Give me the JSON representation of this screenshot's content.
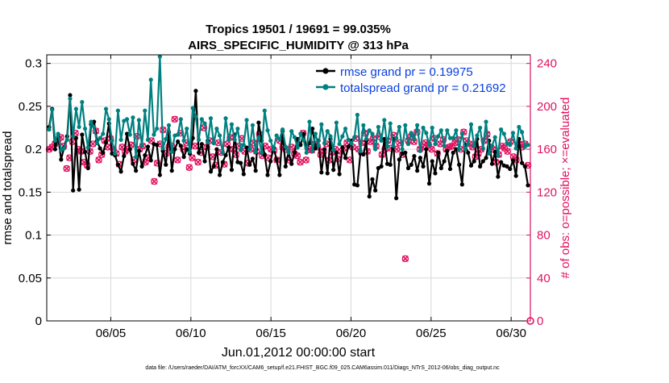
{
  "chart_data": {
    "type": "line",
    "title_line1": "Tropics 19501 / 19691 = 99.035%",
    "title_line2": "AIRS_SPECIFIC_HUMIDITY @ 313 hPa",
    "xlabel": "Jun.01,2012 00:00:00 start",
    "ylabel_left": "rmse and totalspread",
    "ylabel_right": "# of obs: o=possible; ×=evaluated",
    "footer": "data file: /Users/raeder/DAI/ATM_forcXX/CAM6_setup/f.e21.FHIST_BGC.f09_025.CAM6assim.011/Diags_NTrS_2012-06/obs_diag_output.nc",
    "xlim": [
      1,
      31.2
    ],
    "ylim_left": [
      0,
      0.31
    ],
    "ylim_right": [
      0,
      248
    ],
    "x_ticks": [
      5,
      10,
      15,
      20,
      25,
      30
    ],
    "x_tick_labels": [
      "06/05",
      "06/10",
      "06/15",
      "06/20",
      "06/25",
      "06/30"
    ],
    "y_left_ticks": [
      0,
      0.05,
      0.1,
      0.15,
      0.2,
      0.25,
      0.3
    ],
    "y_left_tick_labels": [
      "0",
      "0.05",
      "0.1",
      "0.15",
      "0.2",
      "0.25",
      "0.3"
    ],
    "y_right_ticks": [
      0,
      40,
      80,
      120,
      160,
      200,
      240
    ],
    "y_right_tick_labels": [
      "0",
      "40",
      "80",
      "120",
      "160",
      "200",
      "240"
    ],
    "grid": true,
    "legend_location": "top-right",
    "colors": {
      "rmse": "#000000",
      "spread": "#008080",
      "obs": "#e0115f",
      "legend_text": "#0a3fe0",
      "grid": "#d8d8d8"
    },
    "series": [
      {
        "name": "rmse grand pr = 0.19975",
        "axis": "left",
        "values": [
          0.226,
          0.247,
          0.2,
          0.215,
          0.188,
          0.202,
          0.215,
          0.263,
          0.152,
          0.213,
          0.153,
          0.217,
          0.197,
          0.178,
          0.229,
          0.232,
          0.21,
          0.201,
          0.196,
          0.208,
          0.23,
          0.195,
          0.193,
          0.182,
          0.174,
          0.192,
          0.218,
          0.2,
          0.183,
          0.175,
          0.198,
          0.18,
          0.193,
          0.203,
          0.187,
          0.206,
          0.205,
          0.17,
          0.198,
          0.182,
          0.22,
          0.175,
          0.2,
          0.209,
          0.204,
          0.191,
          0.2,
          0.195,
          0.213,
          0.268,
          0.196,
          0.206,
          0.186,
          0.21,
          0.174,
          0.18,
          0.2,
          0.17,
          0.185,
          0.193,
          0.202,
          0.176,
          0.217,
          0.185,
          0.184,
          0.171,
          0.202,
          0.182,
          0.189,
          0.175,
          0.231,
          0.21,
          0.194,
          0.17,
          0.186,
          0.202,
          0.188,
          0.17,
          0.221,
          0.18,
          0.197,
          0.183,
          0.196,
          0.212,
          0.205,
          0.218,
          0.201,
          0.207,
          0.224,
          0.201,
          0.21,
          0.173,
          0.2,
          0.172,
          0.212,
          0.176,
          0.196,
          0.171,
          0.202,
          0.19,
          0.203,
          0.21,
          0.159,
          0.158,
          0.195,
          0.194,
          0.21,
          0.145,
          0.165,
          0.152,
          0.178,
          0.18,
          0.212,
          0.183,
          0.182,
          0.212,
          0.143,
          0.188,
          0.195,
          0.196,
          0.178,
          0.182,
          0.192,
          0.175,
          0.19,
          0.18,
          0.2,
          0.16,
          0.186,
          0.172,
          0.196,
          0.178,
          0.186,
          0.198,
          0.177,
          0.196,
          0.2,
          0.182,
          0.159,
          0.205,
          0.196,
          0.181,
          0.186,
          0.212,
          0.18,
          0.186,
          0.19,
          0.21,
          0.183,
          0.197,
          0.168,
          0.185,
          0.181,
          0.18,
          0.177,
          0.187,
          0.169,
          0.212,
          0.184,
          0.18,
          0.158
        ]
      },
      {
        "name": "totalspread grand pr = 0.21692",
        "axis": "left",
        "values": [
          0.223,
          0.246,
          0.21,
          0.218,
          0.199,
          0.201,
          0.211,
          0.259,
          0.215,
          0.247,
          0.226,
          0.255,
          0.224,
          0.202,
          0.232,
          0.226,
          0.207,
          0.213,
          0.218,
          0.247,
          0.235,
          0.21,
          0.195,
          0.245,
          0.211,
          0.233,
          0.235,
          0.217,
          0.237,
          0.191,
          0.234,
          0.204,
          0.245,
          0.211,
          0.281,
          0.217,
          0.224,
          0.308,
          0.201,
          0.212,
          0.228,
          0.197,
          0.216,
          0.217,
          0.235,
          0.21,
          0.224,
          0.197,
          0.248,
          0.238,
          0.211,
          0.235,
          0.23,
          0.208,
          0.236,
          0.207,
          0.224,
          0.216,
          0.196,
          0.236,
          0.211,
          0.229,
          0.211,
          0.224,
          0.199,
          0.205,
          0.234,
          0.2,
          0.228,
          0.197,
          0.214,
          0.196,
          0.245,
          0.222,
          0.21,
          0.2,
          0.216,
          0.212,
          0.223,
          0.203,
          0.196,
          0.221,
          0.214,
          0.202,
          0.218,
          0.211,
          0.196,
          0.232,
          0.198,
          0.218,
          0.204,
          0.229,
          0.207,
          0.221,
          0.215,
          0.199,
          0.231,
          0.206,
          0.215,
          0.224,
          0.211,
          0.207,
          0.214,
          0.24,
          0.198,
          0.228,
          0.212,
          0.222,
          0.218,
          0.2,
          0.226,
          0.21,
          0.234,
          0.203,
          0.23,
          0.204,
          0.213,
          0.226,
          0.2,
          0.228,
          0.206,
          0.219,
          0.212,
          0.228,
          0.198,
          0.225,
          0.219,
          0.205,
          0.225,
          0.206,
          0.215,
          0.222,
          0.204,
          0.222,
          0.213,
          0.213,
          0.222,
          0.2,
          0.218,
          0.2,
          0.206,
          0.229,
          0.204,
          0.216,
          0.225,
          0.201,
          0.232,
          0.195,
          0.204,
          0.214,
          0.193,
          0.223,
          0.218,
          0.207,
          0.205,
          0.219,
          0.201,
          0.226,
          0.22,
          0.203,
          0.205
        ]
      },
      {
        "name": "obs possible/evaluated",
        "axis": "right",
        "marker": "o/x",
        "values": [
          160,
          162,
          165,
          168,
          171,
          163,
          142,
          152,
          167,
          175,
          160,
          158,
          148,
          145,
          158,
          165,
          177,
          150,
          155,
          168,
          162,
          170,
          160,
          156,
          146,
          162,
          158,
          160,
          164,
          150,
          172,
          160,
          163,
          148,
          152,
          168,
          130,
          147,
          165,
          178,
          156,
          162,
          163,
          188,
          150,
          175,
          160,
          166,
          143,
          152,
          163,
          148,
          157,
          180,
          162,
          168,
          153,
          145,
          166,
          157,
          146,
          165,
          171,
          160,
          155,
          163,
          170,
          158,
          147,
          160,
          166,
          158,
          174,
          154,
          163,
          152,
          160,
          159,
          150,
          168,
          162,
          160,
          150,
          162,
          156,
          154,
          148,
          175,
          150,
          160,
          159,
          165,
          162,
          155,
          158,
          165,
          150,
          157,
          160,
          151,
          158,
          161,
          166,
          150,
          162,
          170,
          160,
          166,
          175,
          158,
          167,
          170,
          163,
          172,
          155,
          160,
          168,
          161,
          173,
          160,
          166,
          155,
          58,
          168,
          172,
          167,
          176,
          160,
          162,
          166,
          164,
          160,
          170,
          156,
          165,
          169,
          160,
          162,
          163,
          166,
          169,
          160,
          176,
          168,
          165,
          162,
          153,
          156,
          160,
          168,
          174,
          162,
          160,
          148,
          155,
          163,
          161,
          158,
          167,
          153,
          150,
          165,
          162,
          165,
          145
        ]
      }
    ]
  }
}
